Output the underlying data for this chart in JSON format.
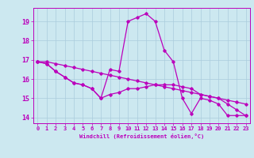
{
  "title": "",
  "xlabel": "Windchill (Refroidissement éolien,°C)",
  "ylabel": "",
  "background_color": "#cce8f0",
  "grid_color": "#aaccdd",
  "line_color": "#bb00bb",
  "xlim": [
    -0.5,
    23.5
  ],
  "ylim": [
    13.7,
    19.7
  ],
  "xticks": [
    0,
    1,
    2,
    3,
    4,
    5,
    6,
    7,
    8,
    9,
    10,
    11,
    12,
    13,
    14,
    15,
    16,
    17,
    18,
    19,
    20,
    21,
    22,
    23
  ],
  "yticks": [
    14,
    15,
    16,
    17,
    18,
    19
  ],
  "series1_x": [
    0,
    1,
    2,
    3,
    4,
    5,
    6,
    7,
    8,
    9,
    10,
    11,
    12,
    13,
    14,
    15,
    16,
    17,
    18,
    19,
    20,
    21,
    22,
    23
  ],
  "series1_y": [
    16.9,
    16.8,
    16.4,
    16.1,
    15.8,
    15.7,
    15.5,
    15.0,
    16.5,
    16.4,
    19.0,
    19.2,
    19.4,
    19.0,
    17.5,
    16.9,
    15.0,
    14.2,
    15.0,
    14.9,
    14.7,
    14.1,
    14.1,
    14.1
  ],
  "series2_x": [
    0,
    1,
    2,
    3,
    4,
    5,
    6,
    7,
    8,
    9,
    10,
    11,
    12,
    13,
    14,
    15,
    16,
    17,
    18,
    19,
    20,
    21,
    22,
    23
  ],
  "series2_y": [
    16.9,
    16.8,
    16.4,
    16.1,
    15.8,
    15.7,
    15.5,
    15.0,
    15.2,
    15.3,
    15.5,
    15.5,
    15.6,
    15.7,
    15.7,
    15.7,
    15.6,
    15.5,
    15.2,
    15.1,
    15.0,
    14.7,
    14.4,
    14.1
  ],
  "series3_x": [
    0,
    1,
    2,
    3,
    4,
    5,
    6,
    7,
    8,
    9,
    10,
    11,
    12,
    13,
    14,
    15,
    16,
    17,
    18,
    19,
    20,
    21,
    22,
    23
  ],
  "series3_y": [
    16.9,
    16.9,
    16.8,
    16.7,
    16.6,
    16.5,
    16.4,
    16.3,
    16.2,
    16.1,
    16.0,
    15.9,
    15.8,
    15.7,
    15.6,
    15.5,
    15.4,
    15.3,
    15.2,
    15.1,
    15.0,
    14.9,
    14.8,
    14.7
  ],
  "tick_fontsize": 5,
  "xlabel_fontsize": 5,
  "marker_size": 1.8,
  "line_width": 0.9
}
